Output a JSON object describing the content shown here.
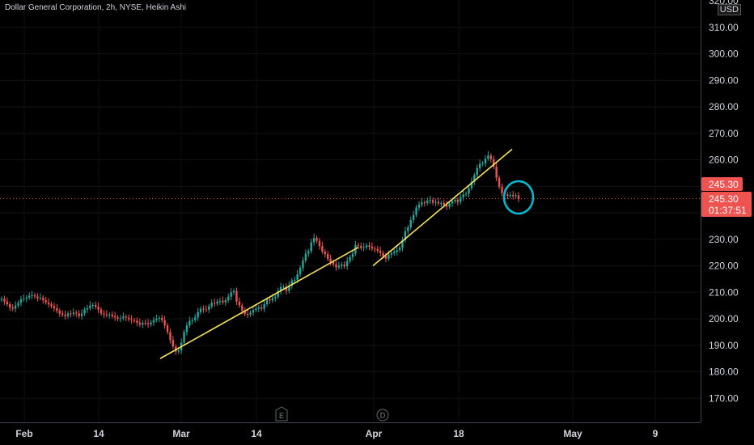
{
  "chart_data": {
    "type": "candlestick",
    "title": "Dollar General Corporation, 2h, NYSE, Heikin Ashi",
    "currency": "USD",
    "ylim": [
      162,
      322
    ],
    "y_ticks": [
      "310.00",
      "300.00",
      "290.00",
      "280.00",
      "270.00",
      "260.00",
      "250.00",
      "240.00",
      "230.00",
      "220.00",
      "210.00",
      "200.00",
      "190.00",
      "180.00",
      "170.00"
    ],
    "top_tick_partial": "320.00",
    "x_ticks": [
      "Feb",
      "14",
      "Mar",
      "14",
      "Apr",
      "18",
      "May",
      "9"
    ],
    "price_labels": {
      "last": "245.30",
      "current": "245.30",
      "countdown": "01:37:51"
    },
    "event_markers": [
      "E",
      "D"
    ],
    "colors": {
      "up": "#26a69a",
      "down": "#ef5350",
      "trendline": "#f7e35b",
      "circle": "#00bcd4",
      "price_label": "#ef5350"
    },
    "trendlines": [
      {
        "from": [
          "Feb 25",
          185
        ],
        "to": [
          "Apr 01",
          227
        ]
      },
      {
        "from": [
          "Apr 01",
          220
        ],
        "to": [
          "Apr 21",
          264
        ]
      }
    ],
    "closes": [
      207.5,
      206.5,
      205.5,
      204.2,
      203.8,
      205,
      206,
      207.4,
      207.6,
      208,
      208.7,
      208.9,
      208.4,
      207.8,
      208,
      207,
      206.2,
      205.5,
      204.8,
      204,
      203,
      202,
      201.5,
      201,
      202,
      201.8,
      202.3,
      202,
      201,
      202,
      203.5,
      204,
      205,
      205.2,
      204.5,
      203.5,
      202,
      201.6,
      201.4,
      201.6,
      201,
      200.5,
      200,
      200.2,
      200.8,
      200.4,
      199.8,
      199.5,
      199.3,
      198.5,
      197.8,
      198.5,
      198.3,
      197.9,
      198.6,
      199.5,
      200,
      200.3,
      199.5,
      197.5,
      195,
      192,
      189.5,
      187.6,
      188,
      191,
      195,
      197.5,
      199.2,
      199.5,
      200.5,
      202.5,
      203.8,
      203.5,
      203.4,
      204.7,
      206,
      205.8,
      206.5,
      206.8,
      206.2,
      207,
      208.3,
      210,
      210.5,
      206.5,
      205,
      203,
      201.8,
      201.6,
      202.3,
      203.3,
      203.8,
      204.3,
      203.8,
      205.5,
      207.3,
      206.9,
      207.8,
      208.3,
      210.5,
      212,
      212.1,
      210.5,
      212.5,
      214.5,
      214.7,
      216.8,
      219.2,
      222,
      224.6,
      225.5,
      228.9,
      230.5,
      229.4,
      227.4,
      225.4,
      224.4,
      222.6,
      221.4,
      220.5,
      219.4,
      220,
      220.5,
      219.8,
      221.8,
      223.3,
      224.6,
      227.8,
      227.5,
      226.8,
      227,
      227.7,
      227.2,
      226.5,
      226.3,
      225.7,
      224.8,
      223.6,
      222.7,
      224.2,
      224.7,
      225.2,
      225.9,
      226.8,
      229.6,
      233.1,
      234.5,
      237.3,
      239.2,
      242,
      243.1,
      243.9,
      243.7,
      244.6,
      244.8,
      243.8,
      244.1,
      243.5,
      243.7,
      242.9,
      242.3,
      243.5,
      244.4,
      244.9,
      244.1,
      245.8,
      246.9,
      247.2,
      249.3,
      251.7,
      254.2,
      256.9,
      258.5,
      258.6,
      260.4,
      261.6,
      260.2,
      257.4,
      253.2,
      249.8,
      247.4,
      246.9,
      246.4,
      246.7,
      246.3,
      246.6,
      245.3
    ]
  }
}
